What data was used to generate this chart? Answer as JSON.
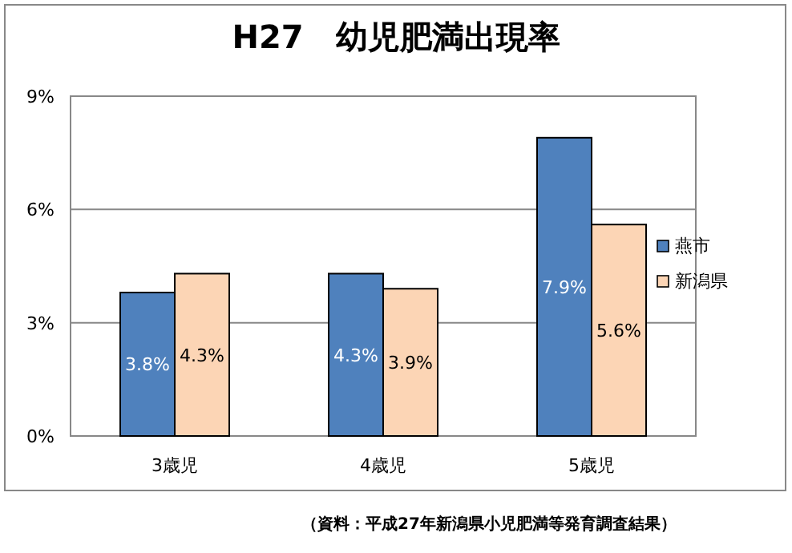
{
  "chart_data": {
    "type": "bar",
    "title": "H27　幼児肥満出現率",
    "categories": [
      "3歳児",
      "4歳児",
      "5歳児"
    ],
    "series": [
      {
        "name": "燕市",
        "color": "#4f81bd",
        "values": [
          3.8,
          4.3,
          7.9
        ],
        "value_labels": [
          "3.8%",
          "4.3%",
          "7.9%"
        ]
      },
      {
        "name": "新潟県",
        "color": "#fcd5b5",
        "values": [
          4.3,
          3.9,
          5.6
        ],
        "value_labels": [
          "4.3%",
          "3.9%",
          "5.6%"
        ]
      }
    ],
    "ylim": [
      0,
      9
    ],
    "yticks": [
      {
        "value": 0,
        "label": "0%"
      },
      {
        "value": 3,
        "label": "3%"
      },
      {
        "value": 6,
        "label": "6%"
      },
      {
        "value": 9,
        "label": "9%"
      }
    ],
    "grid": "y",
    "legend": "right",
    "annotations": [
      "（資料：平成27年新潟県小児肥満等発育調査結果）"
    ]
  }
}
